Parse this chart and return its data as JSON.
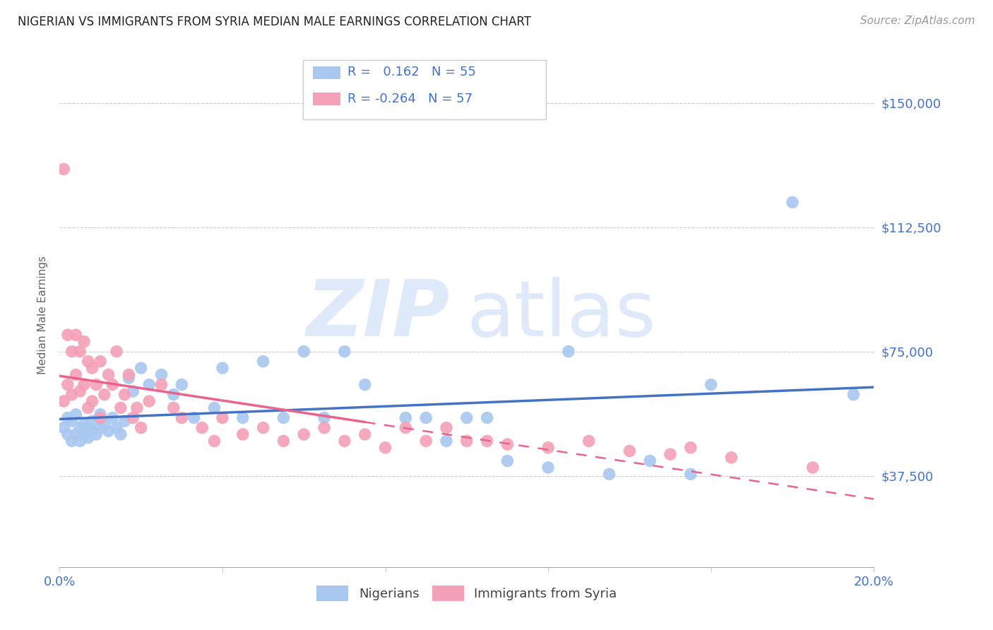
{
  "title": "NIGERIAN VS IMMIGRANTS FROM SYRIA MEDIAN MALE EARNINGS CORRELATION CHART",
  "source": "Source: ZipAtlas.com",
  "ylabel": "Median Male Earnings",
  "xmin": 0.0,
  "xmax": 0.2,
  "ymin": 10000,
  "ymax": 162000,
  "legend_r_nigerian": "0.162",
  "legend_n_nigerian": "55",
  "legend_r_syrian": "-0.264",
  "legend_n_syrian": "57",
  "color_nigerian": "#a8c8f0",
  "color_syrian": "#f4a0b8",
  "color_nigerian_line": "#4472c4",
  "color_syrian_line": "#e8648c",
  "color_axis_labels": "#4472c4",
  "nigerian_x": [
    0.001,
    0.002,
    0.002,
    0.003,
    0.003,
    0.004,
    0.004,
    0.005,
    0.005,
    0.006,
    0.006,
    0.007,
    0.007,
    0.008,
    0.008,
    0.009,
    0.01,
    0.01,
    0.011,
    0.012,
    0.013,
    0.014,
    0.015,
    0.016,
    0.017,
    0.018,
    0.02,
    0.022,
    0.025,
    0.028,
    0.03,
    0.033,
    0.038,
    0.04,
    0.045,
    0.05,
    0.055,
    0.06,
    0.065,
    0.07,
    0.075,
    0.085,
    0.09,
    0.095,
    0.1,
    0.105,
    0.11,
    0.12,
    0.125,
    0.135,
    0.145,
    0.155,
    0.16,
    0.18,
    0.195
  ],
  "nigerian_y": [
    52000,
    50000,
    55000,
    48000,
    54000,
    50000,
    56000,
    48000,
    52000,
    50000,
    53000,
    49000,
    52000,
    51000,
    54000,
    50000,
    52000,
    56000,
    53000,
    51000,
    55000,
    52000,
    50000,
    54000,
    67000,
    63000,
    70000,
    65000,
    68000,
    62000,
    65000,
    55000,
    58000,
    70000,
    55000,
    72000,
    55000,
    75000,
    55000,
    75000,
    65000,
    55000,
    55000,
    48000,
    55000,
    55000,
    42000,
    40000,
    75000,
    38000,
    42000,
    38000,
    65000,
    120000,
    62000
  ],
  "syrian_x": [
    0.001,
    0.001,
    0.002,
    0.002,
    0.003,
    0.003,
    0.004,
    0.004,
    0.005,
    0.005,
    0.006,
    0.006,
    0.007,
    0.007,
    0.008,
    0.008,
    0.009,
    0.01,
    0.01,
    0.011,
    0.012,
    0.013,
    0.014,
    0.015,
    0.016,
    0.017,
    0.018,
    0.019,
    0.02,
    0.022,
    0.025,
    0.028,
    0.03,
    0.035,
    0.038,
    0.04,
    0.045,
    0.05,
    0.055,
    0.06,
    0.065,
    0.07,
    0.075,
    0.08,
    0.085,
    0.09,
    0.095,
    0.1,
    0.105,
    0.11,
    0.12,
    0.13,
    0.14,
    0.15,
    0.155,
    0.165,
    0.185
  ],
  "syrian_y": [
    130000,
    60000,
    80000,
    65000,
    75000,
    62000,
    80000,
    68000,
    75000,
    63000,
    78000,
    65000,
    72000,
    58000,
    70000,
    60000,
    65000,
    72000,
    55000,
    62000,
    68000,
    65000,
    75000,
    58000,
    62000,
    68000,
    55000,
    58000,
    52000,
    60000,
    65000,
    58000,
    55000,
    52000,
    48000,
    55000,
    50000,
    52000,
    48000,
    50000,
    52000,
    48000,
    50000,
    46000,
    52000,
    48000,
    52000,
    48000,
    48000,
    47000,
    46000,
    48000,
    45000,
    44000,
    46000,
    43000,
    40000
  ]
}
